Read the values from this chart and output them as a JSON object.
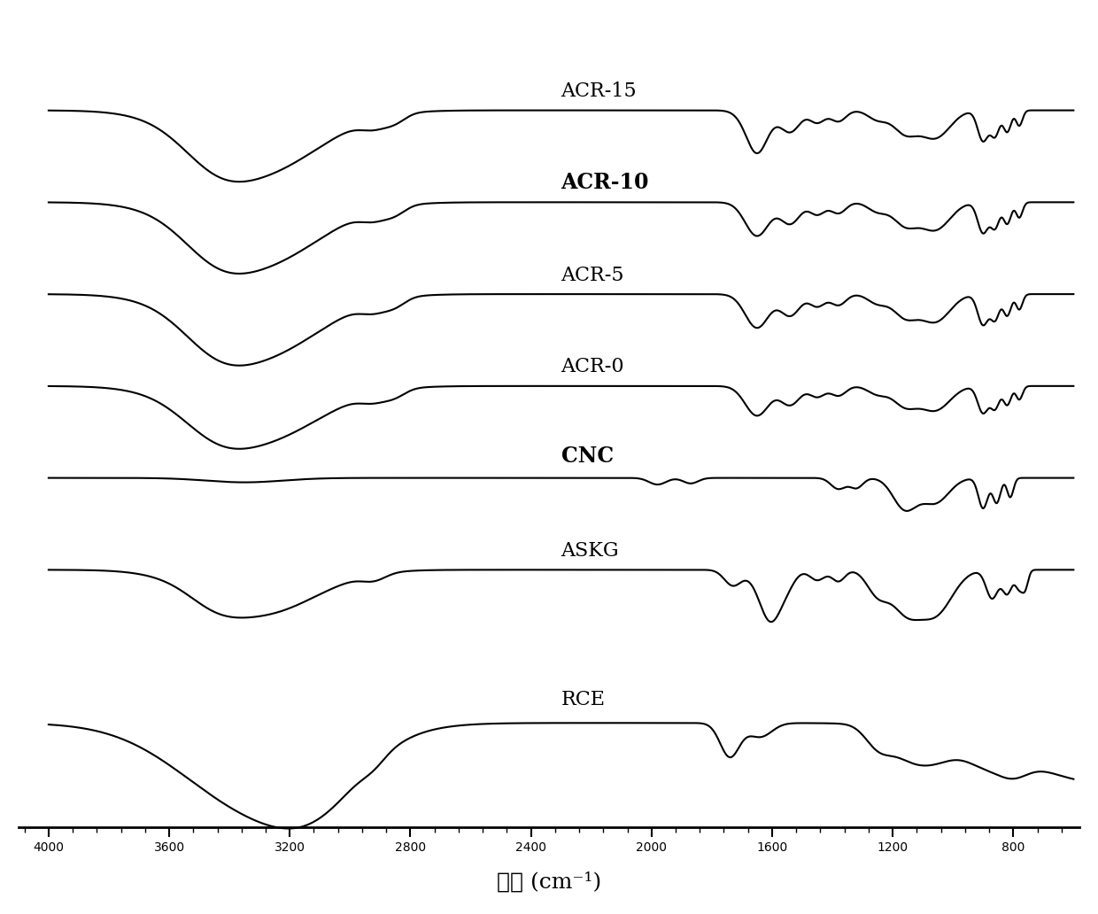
{
  "title": "",
  "xlabel": "波数 (cm⁻¹)",
  "x_min": 600,
  "x_max": 4000,
  "x_ticks": [
    4000,
    3600,
    3200,
    2800,
    2400,
    2000,
    1600,
    1200,
    800
  ],
  "labels": [
    "ACR-15",
    "ACR-10",
    "ACR-5",
    "ACR-0",
    "CNC",
    "ASKG",
    "RCE"
  ],
  "offsets": [
    8.5,
    7.0,
    5.5,
    4.0,
    2.5,
    1.0,
    -1.5
  ],
  "line_color": "#000000",
  "background_color": "#ffffff",
  "label_fontsize": 16,
  "tick_fontsize": 16,
  "xlabel_fontsize": 18
}
